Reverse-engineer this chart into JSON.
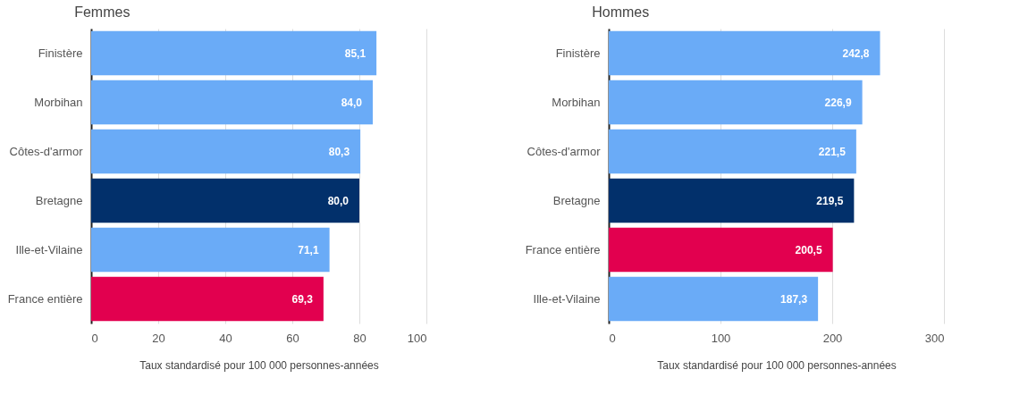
{
  "chart_data": [
    {
      "type": "bar",
      "orientation": "horizontal",
      "title": "Femmes",
      "xlabel": "Taux standardisé pour 100 000 personnes-années",
      "categories": [
        "Finistère",
        "Morbihan",
        "Côtes-d'armor",
        "Bretagne",
        "Ille-et-Vilaine",
        "France entière"
      ],
      "values": [
        85.1,
        84.0,
        80.3,
        80.0,
        71.1,
        69.3
      ],
      "value_labels": [
        "85,1",
        "84,0",
        "80,3",
        "80,0",
        "71,1",
        "69,3"
      ],
      "colors": [
        "#6aabf7",
        "#6aabf7",
        "#6aabf7",
        "#02306b",
        "#6aabf7",
        "#e2004f"
      ],
      "xlim": [
        0,
        100
      ],
      "xticks": [
        0,
        20,
        40,
        60,
        80,
        100
      ],
      "grid": "x"
    },
    {
      "type": "bar",
      "orientation": "horizontal",
      "title": "Hommes",
      "xlabel": "Taux standardisé pour 100 000 personnes-années",
      "categories": [
        "Finistère",
        "Morbihan",
        "Côtes-d'armor",
        "Bretagne",
        "France entière",
        "Ille-et-Vilaine"
      ],
      "values": [
        242.8,
        226.9,
        221.5,
        219.5,
        200.5,
        187.3
      ],
      "value_labels": [
        "242,8",
        "226,9",
        "221,5",
        "219,5",
        "200,5",
        "187,3"
      ],
      "colors": [
        "#6aabf7",
        "#6aabf7",
        "#6aabf7",
        "#02306b",
        "#e2004f",
        "#6aabf7"
      ],
      "xlim": [
        0,
        300
      ],
      "xticks": [
        0,
        100,
        200,
        300
      ],
      "grid": "x"
    }
  ]
}
